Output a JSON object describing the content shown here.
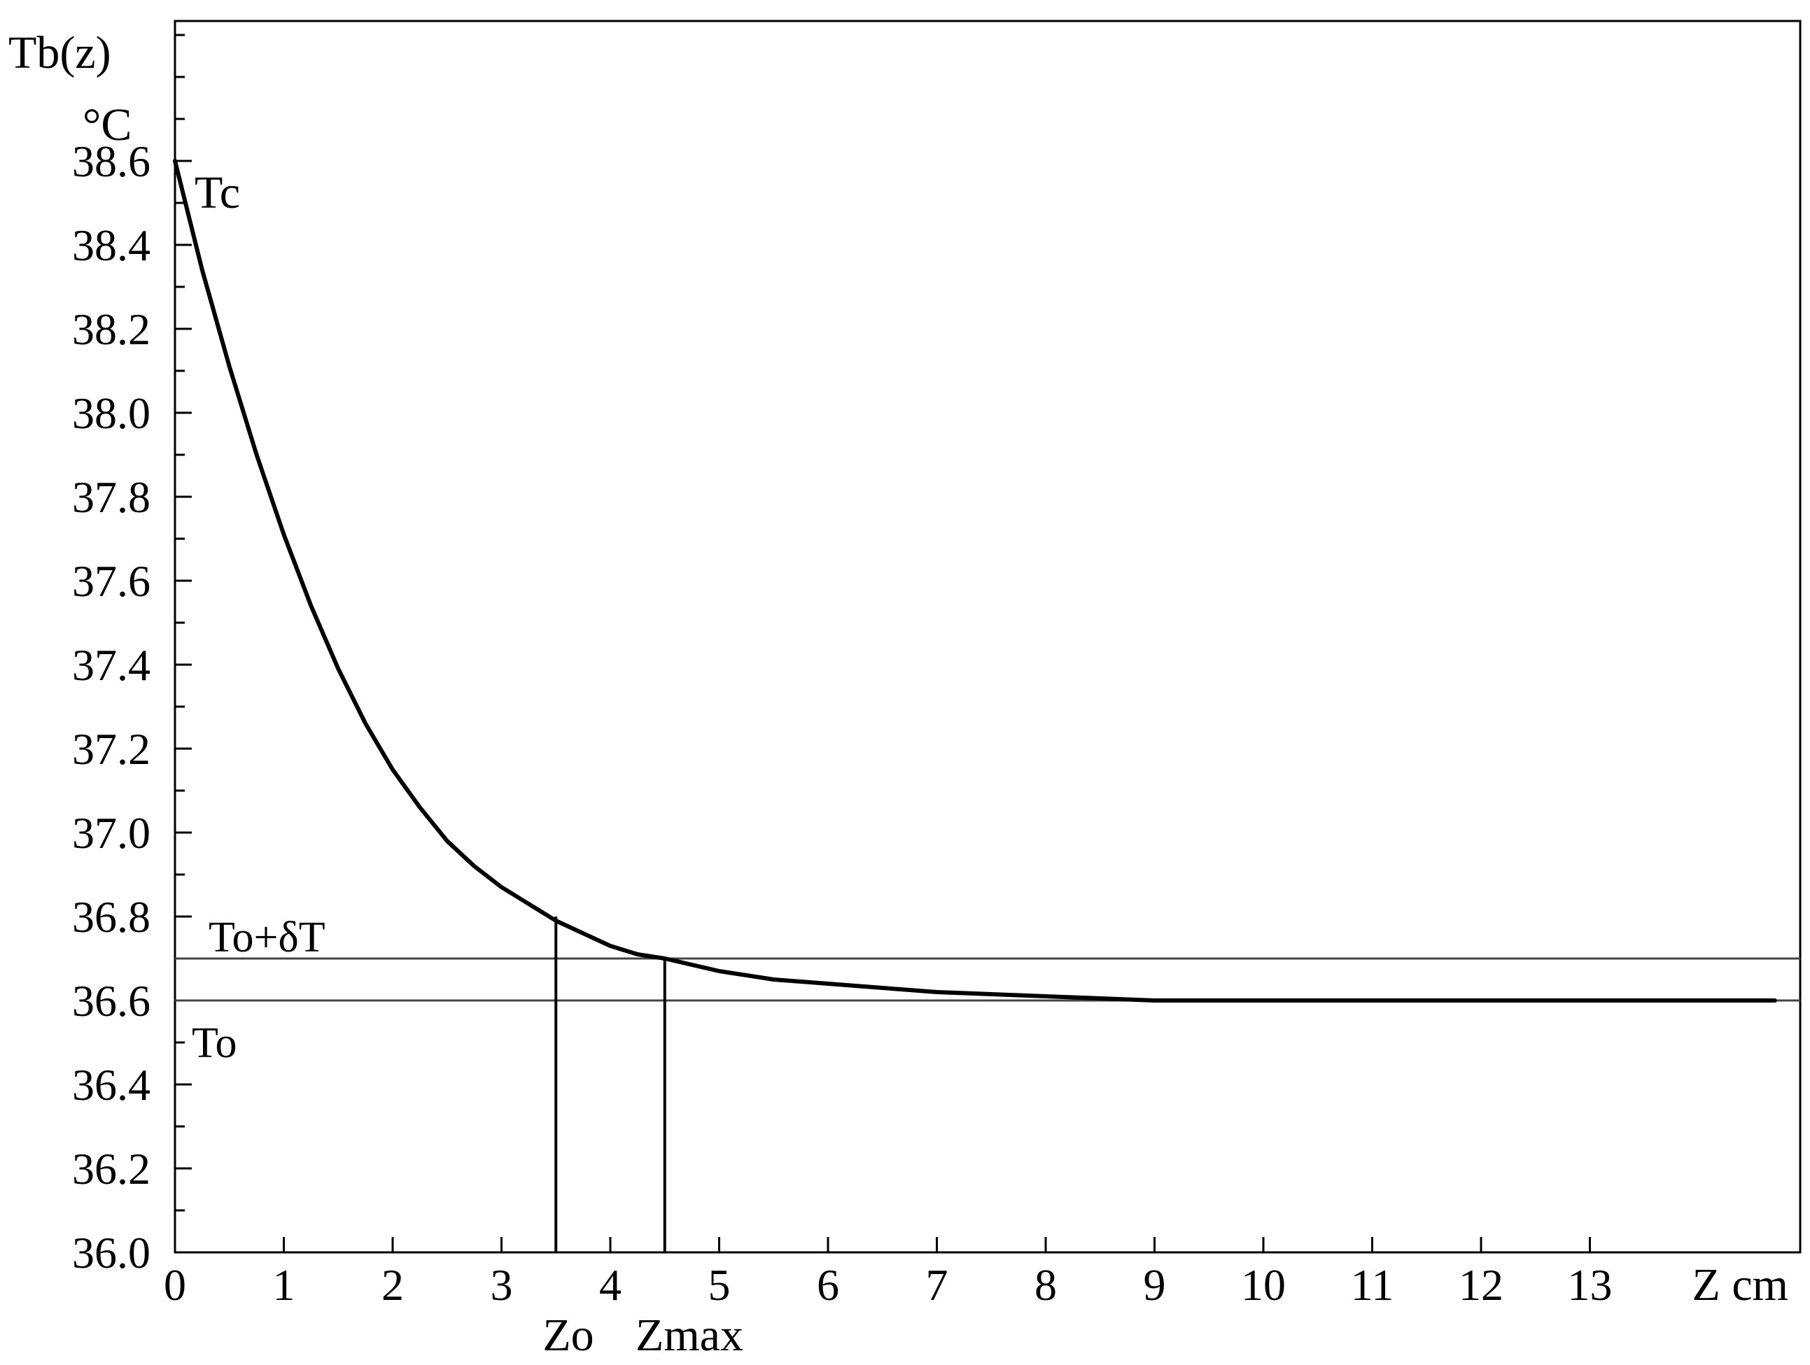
{
  "chart_data": {
    "type": "line",
    "y_axis_label": "Tb(z)",
    "y_axis_unit": "°C",
    "x_axis_label": "Z cm",
    "xlim": [
      0,
      14.7
    ],
    "ylim": [
      36.0,
      38.6
    ],
    "x_ticks": [
      0,
      1,
      2,
      3,
      4,
      5,
      6,
      7,
      8,
      9,
      10,
      11,
      12,
      13
    ],
    "x_tick_labels": [
      "0",
      "1",
      "2",
      "3",
      "4",
      "5",
      "6",
      "7",
      "8",
      "9",
      "10",
      "11",
      "12",
      "13"
    ],
    "y_ticks": [
      36.0,
      36.2,
      36.4,
      36.6,
      36.8,
      37.0,
      37.2,
      37.4,
      37.6,
      37.8,
      38.0,
      38.2,
      38.4,
      38.6
    ],
    "y_tick_labels": [
      "36.0",
      "36.2",
      "36.4",
      "36.6",
      "36.8",
      "37.0",
      "37.2",
      "37.4",
      "37.6",
      "37.8",
      "38.0",
      "38.2",
      "38.4",
      "38.6"
    ],
    "y_minor_step": 0.1,
    "y_minor_ticks_above": [
      38.7,
      38.8,
      38.9
    ],
    "grid": false,
    "series": [
      {
        "x": [
          0,
          0.25,
          0.5,
          0.75,
          1.0,
          1.25,
          1.5,
          1.75,
          2.0,
          2.25,
          2.5,
          2.75,
          3.0,
          3.25,
          3.5,
          3.75,
          4.0,
          4.25,
          4.5,
          5.0,
          5.5,
          6.0,
          6.5,
          7.0,
          8.0,
          9.0,
          10.0,
          11.0,
          12.0,
          13.0,
          14.0,
          14.7
        ],
        "y": [
          38.6,
          38.34,
          38.11,
          37.9,
          37.71,
          37.54,
          37.39,
          37.26,
          37.15,
          37.06,
          36.98,
          36.92,
          36.87,
          36.83,
          36.79,
          36.76,
          36.73,
          36.71,
          36.7,
          36.67,
          36.65,
          36.64,
          36.63,
          36.62,
          36.61,
          36.6,
          36.6,
          36.6,
          36.6,
          36.6,
          36.6,
          36.6
        ]
      }
    ],
    "reference_lines": {
      "horizontal": [
        {
          "y": 36.7,
          "label": "To+δT"
        },
        {
          "y": 36.6,
          "label": "To"
        }
      ],
      "vertical": [
        {
          "x": 3.5,
          "y_top": 36.8,
          "label": "Zo"
        },
        {
          "x": 4.5,
          "y_top": 36.7,
          "label": "Zmax"
        }
      ]
    },
    "annotations": [
      {
        "text": "Tc",
        "x": 0,
        "y": 38.6
      }
    ]
  }
}
